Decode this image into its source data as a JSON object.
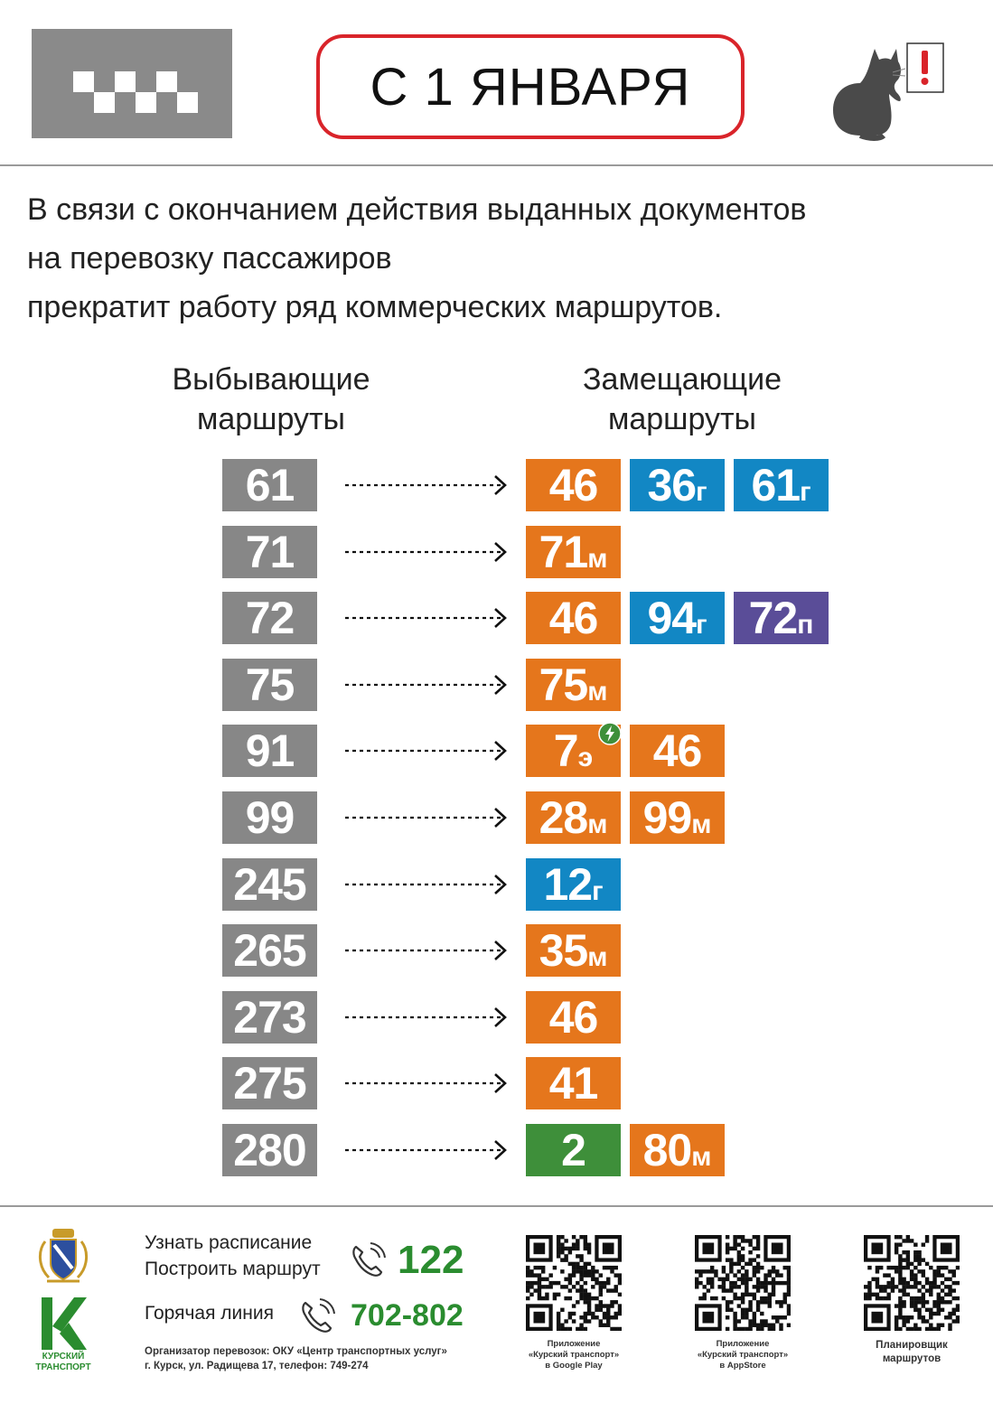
{
  "header": {
    "date_title": "С 1 ЯНВАРЯ",
    "taxi_icon": "taxi-checker-icon",
    "notice_icon": "cat-with-exclamation-icon",
    "accent_color": "#d9242a"
  },
  "intro": {
    "line1": "В связи с окончанием действия выданных документов",
    "line2": "на перевозку пассажиров",
    "line3": "прекратит работу ряд коммерческих маршрутов."
  },
  "columns": {
    "old_line1": "Выбывающие",
    "old_line2": "маршруты",
    "new_line1": "Замещающие",
    "new_line2": "маршруты"
  },
  "colors": {
    "old": "#878787",
    "orange": "#e5761c",
    "blue": "#1287c4",
    "purple": "#5a4d98",
    "green": "#3e8f3a"
  },
  "routes": [
    {
      "old": "61",
      "new": [
        {
          "num": "46",
          "suffix": "",
          "color": "orange"
        },
        {
          "num": "36",
          "suffix": "г",
          "color": "blue"
        },
        {
          "num": "61",
          "suffix": "г",
          "color": "blue"
        }
      ]
    },
    {
      "old": "71",
      "new": [
        {
          "num": "71",
          "suffix": "м",
          "color": "orange"
        }
      ]
    },
    {
      "old": "72",
      "new": [
        {
          "num": "46",
          "suffix": "",
          "color": "orange"
        },
        {
          "num": "94",
          "suffix": "г",
          "color": "blue"
        },
        {
          "num": "72",
          "suffix": "п",
          "color": "purple"
        }
      ]
    },
    {
      "old": "75",
      "new": [
        {
          "num": "75",
          "suffix": "м",
          "color": "orange"
        }
      ]
    },
    {
      "old": "91",
      "new": [
        {
          "num": "7",
          "suffix": "э",
          "color": "orange",
          "electric": true
        },
        {
          "num": "46",
          "suffix": "",
          "color": "orange"
        }
      ]
    },
    {
      "old": "99",
      "new": [
        {
          "num": "28",
          "suffix": "м",
          "color": "orange"
        },
        {
          "num": "99",
          "suffix": "м",
          "color": "orange"
        }
      ]
    },
    {
      "old": "245",
      "new": [
        {
          "num": "12",
          "suffix": "г",
          "color": "blue"
        }
      ]
    },
    {
      "old": "265",
      "new": [
        {
          "num": "35",
          "suffix": "м",
          "color": "orange"
        }
      ]
    },
    {
      "old": "273",
      "new": [
        {
          "num": "46",
          "suffix": "",
          "color": "orange"
        }
      ]
    },
    {
      "old": "275",
      "new": [
        {
          "num": "41",
          "suffix": "",
          "color": "orange"
        }
      ]
    },
    {
      "old": "280",
      "new": [
        {
          "num": "2",
          "suffix": "",
          "color": "green"
        },
        {
          "num": "80",
          "suffix": "м",
          "color": "orange"
        }
      ]
    }
  ],
  "footer": {
    "logo_caption_line1": "КУРСКИЙ",
    "logo_caption_line2": "ТРАНСПОРТ",
    "schedule_label": "Узнать расписание",
    "route_label": "Построить маршрут",
    "short_number": "122",
    "hotline_label": "Горячая линия",
    "hotline_number": "702-802",
    "organizer": "Организатор перевозок: ОКУ «Центр транспортных услуг»",
    "address": "г. Курск, ул. Радищева 17, телефон: 749-274",
    "qr1_line1": "Приложение",
    "qr1_line2": "«Курский транспорт»",
    "qr1_line3": "в Google Play",
    "qr2_line1": "Приложение",
    "qr2_line2": "«Курский транспорт»",
    "qr2_line3": "в AppStore",
    "qr3_line1": "Планировщик",
    "qr3_line2": "маршрутов"
  }
}
